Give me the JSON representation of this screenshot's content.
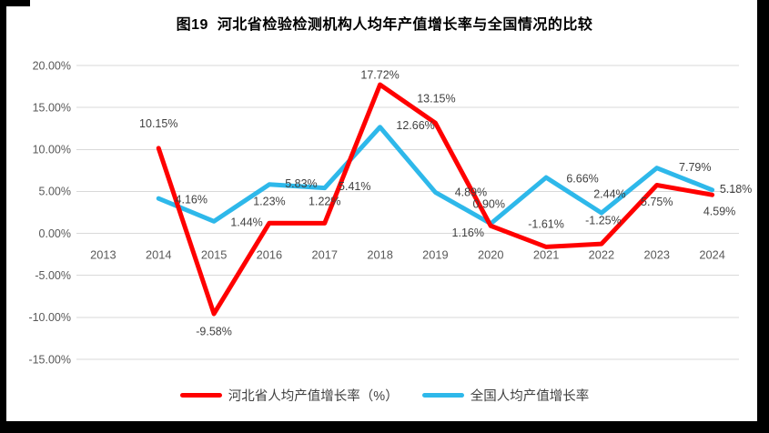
{
  "chart_data": {
    "type": "line",
    "title": "图19  河北省检验检测机构人均年产值增长率与全国情况的比较",
    "categories": [
      "2013",
      "2014",
      "2015",
      "2016",
      "2017",
      "2018",
      "2019",
      "2020",
      "2021",
      "2022",
      "2023",
      "2024"
    ],
    "series": [
      {
        "name": "河北省人均产值增长率（%）",
        "color": "#FF0000",
        "values": [
          null,
          10.15,
          -9.58,
          1.23,
          1.22,
          17.72,
          13.15,
          0.9,
          -1.61,
          -1.25,
          5.75,
          4.59
        ]
      },
      {
        "name": "全国人均产值增长率",
        "color": "#2EB8EA",
        "values": [
          null,
          4.16,
          1.44,
          5.83,
          5.41,
          12.66,
          4.89,
          1.16,
          6.66,
          2.44,
          7.79,
          5.18
        ]
      }
    ],
    "y_axis": {
      "min": -15,
      "max": 20,
      "step": 5,
      "format": "0.00%"
    },
    "y_tick_labels": [
      "20.00%",
      "15.00%",
      "10.00%",
      "5.00%",
      "0.00%",
      "-5.00%",
      "-10.00%",
      "-15.00%"
    ],
    "data_labels": true,
    "data_label_format": "0.00%",
    "grid": true,
    "legend_position": "bottom",
    "colors": {
      "grid": "#D9D9D9",
      "axis_text": "#595959",
      "label_text": "#404040",
      "background": "#FFFFFF",
      "frame": "#000000"
    }
  }
}
